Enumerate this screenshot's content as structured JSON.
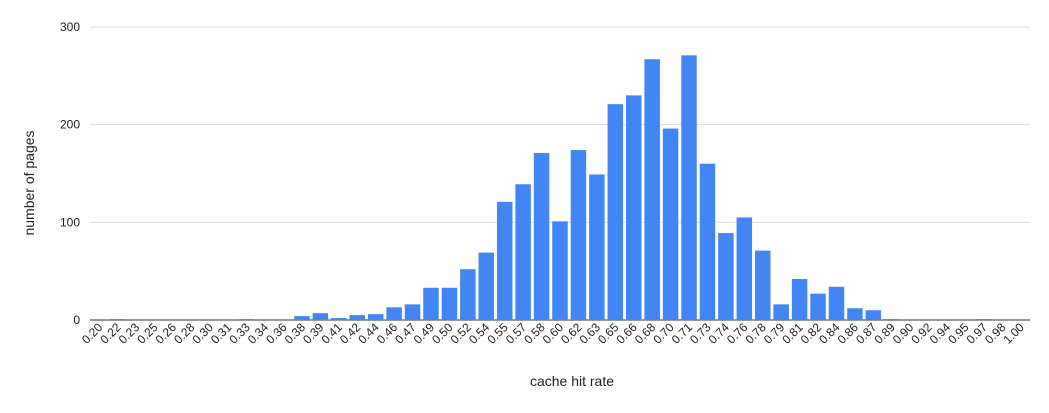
{
  "chart_data": {
    "type": "bar",
    "x_label": "cache hit rate",
    "y_label": "number of pages",
    "categories": [
      "0.20",
      "0.22",
      "0.23",
      "0.25",
      "0.26",
      "0.28",
      "0.30",
      "0.31",
      "0.33",
      "0.34",
      "0.36",
      "0.38",
      "0.39",
      "0.41",
      "0.42",
      "0.44",
      "0.46",
      "0.47",
      "0.49",
      "0.50",
      "0.52",
      "0.54",
      "0.55",
      "0.57",
      "0.58",
      "0.60",
      "0.62",
      "0.63",
      "0.65",
      "0.66",
      "0.68",
      "0.70",
      "0.71",
      "0.73",
      "0.74",
      "0.76",
      "0.78",
      "0.79",
      "0.81",
      "0.82",
      "0.84",
      "0.86",
      "0.87",
      "0.89",
      "0.90",
      "0.92",
      "0.94",
      "0.95",
      "0.97",
      "0.98",
      "1.00"
    ],
    "values": [
      0,
      1,
      0,
      0,
      0,
      0,
      0,
      0,
      1,
      0,
      0,
      4,
      7,
      2,
      5,
      6,
      13,
      16,
      33,
      33,
      52,
      69,
      121,
      139,
      171,
      101,
      174,
      149,
      221,
      230,
      267,
      196,
      271,
      160,
      89,
      105,
      71,
      16,
      42,
      27,
      34,
      12,
      10,
      1,
      0,
      0,
      0,
      0,
      1,
      0,
      0
    ],
    "color": "#4285f4",
    "ylim": [
      0,
      300
    ],
    "yticks": [
      0,
      100,
      200,
      300
    ],
    "grid": true
  }
}
